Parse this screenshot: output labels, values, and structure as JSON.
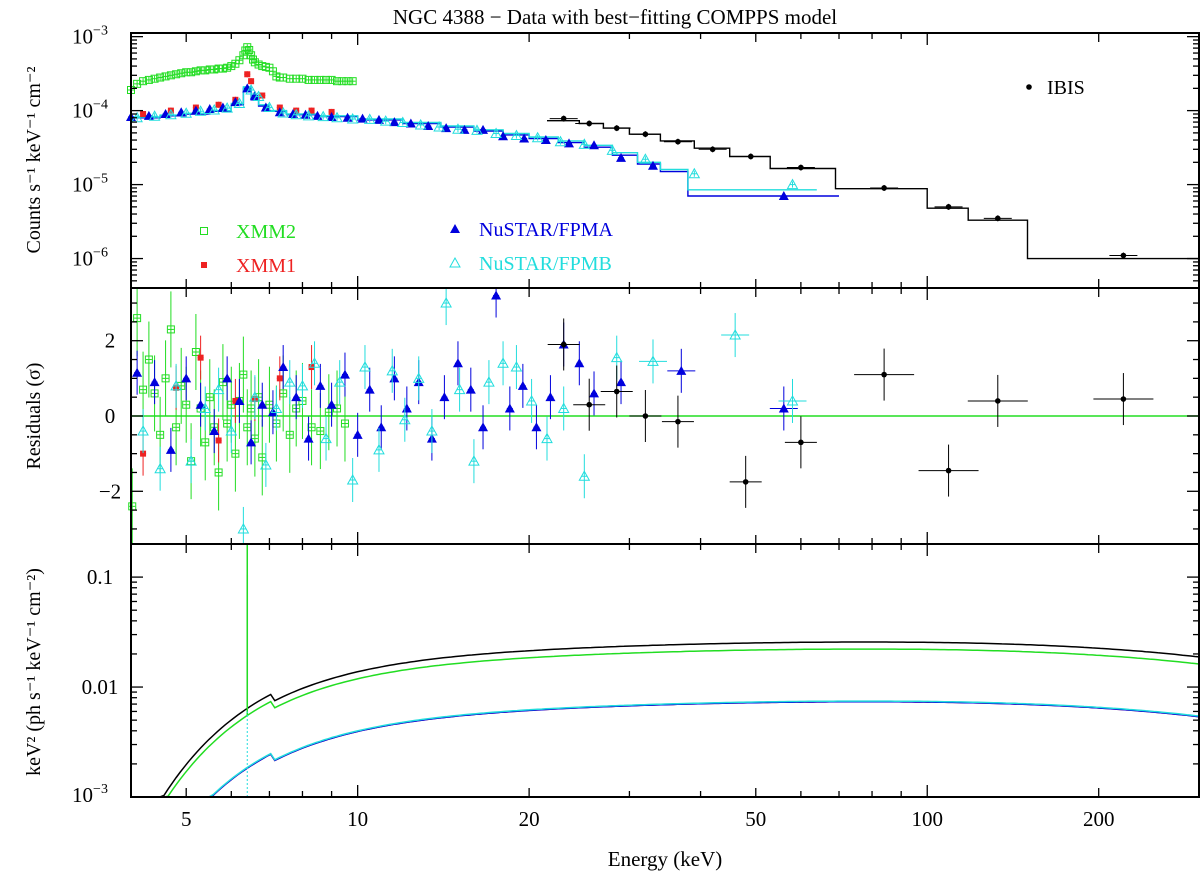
{
  "chart_data": [
    {
      "panel": "top",
      "type": "scatter",
      "title": "NGC 4388 − Data with best−fitting COMPPS model",
      "ylabel": "Counts s⁻¹ keV⁻¹ cm⁻²",
      "xscale": "log",
      "yscale": "log",
      "xlim": [
        4,
        300
      ],
      "ylim": [
        4e-07,
        0.00112
      ],
      "yticks": [
        {
          "v": 0.001,
          "m": "10",
          "e": "−3"
        },
        {
          "v": 0.0001,
          "m": "10",
          "e": "−4"
        },
        {
          "v": 1e-05,
          "m": "10",
          "e": "−5"
        },
        {
          "v": 1e-06,
          "m": "10",
          "e": "−6"
        }
      ],
      "legend": [
        {
          "label": "XMM2",
          "color": "#22dd22",
          "marker": "open-square",
          "position": "left"
        },
        {
          "label": "XMM1",
          "color": "#ee2222",
          "marker": "filled-square",
          "position": "left"
        },
        {
          "label": "NuSTAR/FPMA",
          "color": "#0000dd",
          "marker": "filled-triangle",
          "position": "center"
        },
        {
          "label": "NuSTAR/FPMB",
          "color": "#22dddd",
          "marker": "open-triangle",
          "position": "center"
        },
        {
          "label": "IBIS",
          "color": "#000000",
          "marker": "filled-circle",
          "position": "top-right"
        }
      ],
      "series": [
        {
          "name": "XMM2",
          "color": "#22dd22",
          "marker": "open-square",
          "x": [
            4.0,
            4.1,
            4.2,
            4.3,
            4.4,
            4.5,
            4.6,
            4.7,
            4.8,
            4.9,
            5.0,
            5.1,
            5.2,
            5.3,
            5.4,
            5.5,
            5.6,
            5.7,
            5.8,
            5.9,
            6.0,
            6.1,
            6.2,
            6.3,
            6.35,
            6.4,
            6.45,
            6.5,
            6.55,
            6.6,
            6.7,
            6.8,
            6.9,
            7.0,
            7.1,
            7.2,
            7.3,
            7.4,
            7.6,
            7.8,
            8.0,
            8.2,
            8.4,
            8.6,
            8.8,
            9.0,
            9.2,
            9.4,
            9.6,
            9.8
          ],
          "y": [
            0.00019,
            0.00023,
            0.00025,
            0.00026,
            0.00027,
            0.00028,
            0.00029,
            0.0003,
            0.00031,
            0.00032,
            0.00033,
            0.00033,
            0.00034,
            0.00035,
            0.00035,
            0.00036,
            0.00036,
            0.00037,
            0.00037,
            0.00038,
            0.0004,
            0.00043,
            0.00048,
            0.00056,
            0.00065,
            0.00072,
            0.00066,
            0.00056,
            0.00049,
            0.00045,
            0.00042,
            0.0004,
            0.00039,
            0.00038,
            0.00034,
            0.00029,
            0.00028,
            0.00028,
            0.00027,
            0.00027,
            0.00027,
            0.00026,
            0.00026,
            0.00026,
            0.00026,
            0.00026,
            0.00025,
            0.00025,
            0.00025,
            0.00025
          ]
        },
        {
          "name": "XMM1",
          "color": "#ee2222",
          "marker": "filled-square",
          "x": [
            4.2,
            4.7,
            5.2,
            5.7,
            6.1,
            6.4,
            6.5,
            6.8,
            7.3,
            7.8,
            8.3,
            9.0
          ],
          "y": [
            9e-05,
            0.0001,
            0.00011,
            0.00012,
            0.00014,
            0.00031,
            0.00025,
            0.00016,
            0.00011,
            0.0001,
            0.0001,
            9.6e-05
          ]
        },
        {
          "name": "NuSTAR/FPMA",
          "color": "#0000dd",
          "marker": "filled-triangle",
          "x": [
            4.0,
            4.3,
            4.6,
            4.9,
            5.2,
            5.5,
            5.8,
            6.1,
            6.4,
            6.6,
            6.9,
            7.3,
            7.7,
            8.1,
            8.5,
            9.0,
            9.6,
            10.2,
            10.9,
            11.6,
            12.4,
            13.3,
            14.3,
            15.4,
            16.6,
            18.0,
            19.6,
            21.4,
            23.5,
            26.0,
            29.0,
            33.0,
            56.0
          ],
          "y": [
            8.2e-05,
            8.5e-05,
            9e-05,
            9.5e-05,
            0.0001,
            0.000105,
            0.00011,
            0.00013,
            0.0002,
            0.00016,
            0.00011,
            9.5e-05,
            9e-05,
            8.8e-05,
            8.5e-05,
            8.2e-05,
            8e-05,
            7.8e-05,
            7.5e-05,
            7e-05,
            6.7e-05,
            6.2e-05,
            5.8e-05,
            5.5e-05,
            5.5e-05,
            4.5e-05,
            4.2e-05,
            4e-05,
            3.6e-05,
            3.4e-05,
            2.3e-05,
            1.8e-05,
            7e-06
          ]
        },
        {
          "name": "NuSTAR/FPMB",
          "color": "#22dddd",
          "marker": "open-triangle",
          "x": [
            4.1,
            4.4,
            4.7,
            5.0,
            5.3,
            5.6,
            5.9,
            6.2,
            6.5,
            6.7,
            7.0,
            7.4,
            7.8,
            8.2,
            8.7,
            9.2,
            9.8,
            10.5,
            11.2,
            12.0,
            12.9,
            13.9,
            15.0,
            16.2,
            17.5,
            19.0,
            20.7,
            22.7,
            25.0,
            28.0,
            32.0,
            39.0,
            58.0
          ],
          "y": [
            8e-05,
            8.4e-05,
            8.8e-05,
            9.2e-05,
            9.8e-05,
            0.000102,
            0.000108,
            0.000125,
            0.00019,
            0.000155,
            0.00011,
            9.3e-05,
            8.8e-05,
            8.5e-05,
            8.3e-05,
            8e-05,
            7.7e-05,
            7.6e-05,
            7.2e-05,
            6.9e-05,
            6.4e-05,
            6e-05,
            5.6e-05,
            5.4e-05,
            4.9e-05,
            4.6e-05,
            4.3e-05,
            3.8e-05,
            3.5e-05,
            2.9e-05,
            2.2e-05,
            1.4e-05,
            1e-05
          ]
        },
        {
          "name": "IBIS",
          "color": "#000000",
          "marker": "filled-circle",
          "x": [
            23.0,
            25.5,
            28.5,
            32.0,
            36.5,
            42.0,
            49.0,
            60.0,
            84.0,
            109.0,
            133.0,
            221.0
          ],
          "y": [
            7.8e-05,
            6.7e-05,
            5.8e-05,
            4.8e-05,
            3.8e-05,
            3e-05,
            2.4e-05,
            1.7e-05,
            9e-06,
            5e-06,
            3.5e-06,
            1.1e-06
          ]
        }
      ],
      "model_steps": [
        {
          "name": "IBIS model",
          "color": "#000000",
          "edges": [
            21.5,
            24.5,
            27,
            30,
            34,
            39,
            45,
            53,
            69,
            100,
            118,
            150,
            300
          ],
          "values": [
            7.3e-05,
            6.7e-05,
            5.8e-05,
            4.8e-05,
            3.9e-05,
            3.1e-05,
            2.4e-05,
            1.65e-05,
            8.8e-06,
            4.8e-06,
            3.3e-06,
            1e-06
          ]
        },
        {
          "name": "FPMA model",
          "color": "#0000dd",
          "edges": [
            4.0,
            4.5,
            5.0,
            5.5,
            6.0,
            6.3,
            6.5,
            6.7,
            7.0,
            7.5,
            8.5,
            10,
            12,
            14,
            16,
            18,
            20,
            22.5,
            25,
            28,
            31,
            34,
            38,
            70
          ],
          "values": [
            8e-05,
            8.5e-05,
            9e-05,
            9.8e-05,
            0.00012,
            0.0002,
            0.00014,
            0.000115,
            9.8e-05,
            8.8e-05,
            8.3e-05,
            7.5e-05,
            6.7e-05,
            6e-05,
            5.3e-05,
            4.7e-05,
            4.2e-05,
            3.7e-05,
            3.2e-05,
            2.5e-05,
            1.9e-05,
            1.5e-05,
            7e-06
          ]
        },
        {
          "name": "FPMB model",
          "color": "#22dddd",
          "edges": [
            4.0,
            4.5,
            5.0,
            5.5,
            6.0,
            6.3,
            6.5,
            6.7,
            7.0,
            7.5,
            8.5,
            10,
            12,
            14,
            16,
            18,
            20,
            22.5,
            25,
            28,
            31,
            34,
            38,
            64
          ],
          "values": [
            8.2e-05,
            8.7e-05,
            9.2e-05,
            0.0001,
            0.000125,
            0.00021,
            0.000145,
            0.00012,
            0.0001,
            9e-05,
            8.5e-05,
            7.7e-05,
            6.9e-05,
            6.2e-05,
            5.5e-05,
            4.9e-05,
            4.4e-05,
            3.9e-05,
            3.4e-05,
            2.7e-05,
            2e-05,
            1.6e-05,
            8.5e-06
          ]
        }
      ]
    },
    {
      "panel": "middle",
      "type": "scatter",
      "ylabel": "Residuals (σ)",
      "xscale": "log",
      "yscale": "linear",
      "xlim": [
        4,
        300
      ],
      "ylim": [
        -3.4,
        3.4
      ],
      "yticks": [
        {
          "v": 2,
          "label": "2"
        },
        {
          "v": 0,
          "label": "0"
        },
        {
          "v": -2,
          "label": "−2"
        }
      ],
      "zero_line_color": "#22dd22",
      "series": [
        {
          "name": "XMM2",
          "color": "#22dd22",
          "marker": "open-square",
          "x": [
            4.02,
            4.1,
            4.2,
            4.3,
            4.4,
            4.5,
            4.6,
            4.7,
            4.8,
            4.9,
            5.0,
            5.1,
            5.2,
            5.3,
            5.4,
            5.5,
            5.6,
            5.7,
            5.8,
            5.9,
            6.0,
            6.1,
            6.2,
            6.3,
            6.4,
            6.5,
            6.6,
            6.7,
            6.8,
            7.0,
            7.2,
            7.4,
            7.6,
            7.8,
            8.0,
            8.3,
            8.6,
            8.9,
            9.2,
            9.5
          ],
          "y": [
            -2.4,
            2.6,
            0.7,
            1.5,
            0.6,
            -0.5,
            1.0,
            2.3,
            -0.3,
            0.8,
            0.3,
            -1.2,
            1.7,
            0.2,
            -0.7,
            0.5,
            -0.3,
            -1.5,
            0.9,
            -0.2,
            0.3,
            -1.0,
            0.4,
            1.1,
            -0.3,
            0.2,
            -0.6,
            0.5,
            -1.1,
            0.3,
            -0.2,
            0.6,
            -0.5,
            0.2,
            0.4,
            -0.3,
            -0.4,
            0.1,
            0.2,
            -0.2
          ]
        },
        {
          "name": "XMM1",
          "color": "#ee2222",
          "marker": "filled-square",
          "x": [
            4.2,
            4.8,
            5.3,
            5.7,
            6.1,
            6.6,
            7.3,
            8.3
          ],
          "y": [
            -1.0,
            0.75,
            1.55,
            -0.65,
            0.4,
            0.45,
            1.0,
            1.3
          ]
        },
        {
          "name": "NuSTAR/FPMA",
          "color": "#0000dd",
          "marker": "filled-triangle",
          "x": [
            4.1,
            4.4,
            4.7,
            5.0,
            5.3,
            5.6,
            5.9,
            6.2,
            6.5,
            6.8,
            7.1,
            7.4,
            7.8,
            8.2,
            8.6,
            9.0,
            9.5,
            10.0,
            10.5,
            11.0,
            11.6,
            12.2,
            12.8,
            13.5,
            14.2,
            15.0,
            15.8,
            16.6,
            17.5,
            18.5,
            19.5,
            20.6,
            21.8,
            23.0,
            24.5,
            26.0,
            29.0,
            37.0,
            56.0
          ],
          "y": [
            1.15,
            0.9,
            -0.9,
            1.0,
            0.3,
            -0.4,
            1.0,
            0.4,
            -0.7,
            0.3,
            0.1,
            1.3,
            0.5,
            -0.6,
            0.8,
            0.3,
            1.1,
            -0.5,
            0.7,
            -0.3,
            1.0,
            0.2,
            0.9,
            -0.6,
            0.5,
            1.4,
            0.7,
            -0.3,
            3.2,
            0.2,
            0.8,
            -0.3,
            0.5,
            1.9,
            1.4,
            0.6,
            0.9,
            1.2,
            0.2
          ]
        },
        {
          "name": "NuSTAR/FPMB",
          "color": "#22dddd",
          "marker": "open-triangle",
          "x": [
            4.2,
            4.5,
            4.8,
            5.1,
            5.4,
            5.7,
            6.0,
            6.3,
            6.6,
            6.9,
            7.2,
            7.6,
            8.0,
            8.4,
            8.8,
            9.3,
            9.8,
            10.3,
            10.9,
            11.5,
            12.1,
            12.8,
            13.5,
            14.3,
            15.1,
            16.0,
            17.0,
            18.0,
            19.0,
            20.2,
            21.5,
            23.0,
            25.0,
            28.5,
            33.0,
            46.0,
            58.0
          ],
          "y": [
            -0.4,
            -1.4,
            0.8,
            -1.2,
            0.2,
            0.7,
            -0.4,
            -3.0,
            0.5,
            -1.3,
            0.2,
            0.9,
            0.8,
            1.4,
            -0.6,
            0.9,
            -1.7,
            1.3,
            -0.9,
            1.2,
            -0.1,
            1.0,
            -0.4,
            3.0,
            0.7,
            -1.2,
            0.9,
            1.4,
            1.3,
            0.4,
            -0.6,
            0.2,
            -1.6,
            1.55,
            1.45,
            2.15,
            0.4
          ]
        },
        {
          "name": "IBIS",
          "color": "#000000",
          "marker": "filled-circle",
          "x": [
            23.0,
            25.5,
            28.5,
            32.0,
            36.5,
            48.0,
            60.0,
            84.0,
            109.0,
            133.0,
            221.0
          ],
          "y": [
            1.9,
            0.3,
            0.65,
            0.0,
            -0.15,
            -1.75,
            -0.7,
            1.1,
            -1.45,
            0.4,
            0.45
          ]
        }
      ]
    },
    {
      "panel": "bottom",
      "type": "line",
      "ylabel": "keV² (ph s⁻¹ keV⁻¹ cm⁻²)",
      "xlabel": "Energy (keV)",
      "xscale": "log",
      "yscale": "log",
      "xlim": [
        4,
        300
      ],
      "ylim": [
        0.001,
        0.2
      ],
      "xticks": [
        5,
        10,
        20,
        50,
        100,
        200
      ],
      "yticks": [
        {
          "v": 0.1,
          "label": "0.1"
        },
        {
          "v": 0.01,
          "label": "0.01"
        },
        {
          "v": 0.001,
          "label": "",
          "m": "10",
          "e": "−3"
        }
      ],
      "series": [
        {
          "name": "IBIS",
          "color": "#000000",
          "norm": 0.0255,
          "line_peak": 0.105
        },
        {
          "name": "XMM2",
          "color": "#22dd22",
          "norm": 0.022,
          "line_peak": 0.22
        },
        {
          "name": "XMM1",
          "color": "#ee2222",
          "norm": 0.0073
        },
        {
          "name": "NuSTAR/FPMA",
          "color": "#0000dd",
          "norm": 0.0073
        },
        {
          "name": "NuSTAR/FPMB",
          "color": "#22dddd",
          "norm": 0.0074
        }
      ]
    }
  ]
}
